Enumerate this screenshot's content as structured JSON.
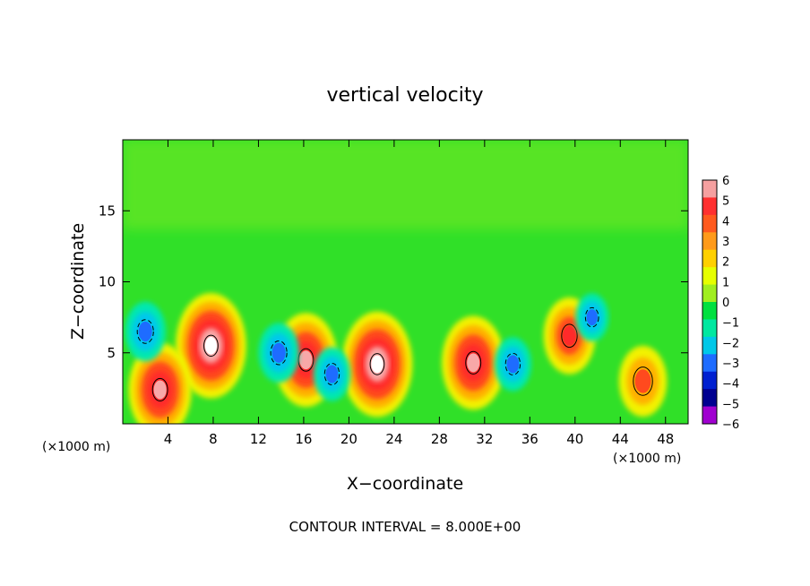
{
  "chart_data": {
    "type": "heatmap",
    "title": "vertical velocity",
    "xlabel": "X−coordinate",
    "ylabel": "Z−coordinate",
    "x_unit_left": "(×1000 m)",
    "x_unit_right": "(×1000 m)",
    "xlim": [
      0,
      50
    ],
    "ylim": [
      0,
      20
    ],
    "x_ticks": [
      4,
      8,
      12,
      16,
      20,
      24,
      28,
      32,
      36,
      40,
      44,
      48
    ],
    "y_ticks": [
      5,
      10,
      15
    ],
    "colorbar": {
      "labels": [
        "6",
        "5",
        "4",
        "3",
        "2",
        "1",
        "0",
        "−1",
        "−2",
        "−3",
        "−4",
        "−5",
        "−6"
      ],
      "colors": [
        "#f5a0a0",
        "#ff3030",
        "#ff5a1e",
        "#ff9a1a",
        "#ffd000",
        "#e6ff00",
        "#a0ee20",
        "#00e040",
        "#00e8a0",
        "#00c8e8",
        "#1e6cff",
        "#0020d0",
        "#000090",
        "#a000d0"
      ],
      "range": [
        -6,
        6
      ]
    },
    "background_value": 0,
    "features": [
      {
        "sign": "positive",
        "x": 7.8,
        "z": 5.5,
        "amplitude": 14
      },
      {
        "sign": "positive",
        "x": 3.3,
        "z": 2.4,
        "amplitude": 12
      },
      {
        "sign": "positive",
        "x": 16.2,
        "z": 4.5,
        "amplitude": 12
      },
      {
        "sign": "positive",
        "x": 22.5,
        "z": 4.2,
        "amplitude": 14
      },
      {
        "sign": "positive",
        "x": 31.0,
        "z": 4.3,
        "amplitude": 12
      },
      {
        "sign": "positive",
        "x": 46.0,
        "z": 3.0,
        "amplitude": 8
      },
      {
        "sign": "positive",
        "x": 39.5,
        "z": 6.2,
        "amplitude": 9
      },
      {
        "sign": "negative",
        "x": 2.0,
        "z": 6.5,
        "amplitude": 6
      },
      {
        "sign": "negative",
        "x": 13.8,
        "z": 5.0,
        "amplitude": 6
      },
      {
        "sign": "negative",
        "x": 18.5,
        "z": 3.5,
        "amplitude": 5
      },
      {
        "sign": "negative",
        "x": 34.5,
        "z": 4.2,
        "amplitude": 5
      },
      {
        "sign": "negative",
        "x": 41.5,
        "z": 7.5,
        "amplitude": 4
      }
    ],
    "footer": "CONTOUR INTERVAL = 8.000E+00"
  }
}
